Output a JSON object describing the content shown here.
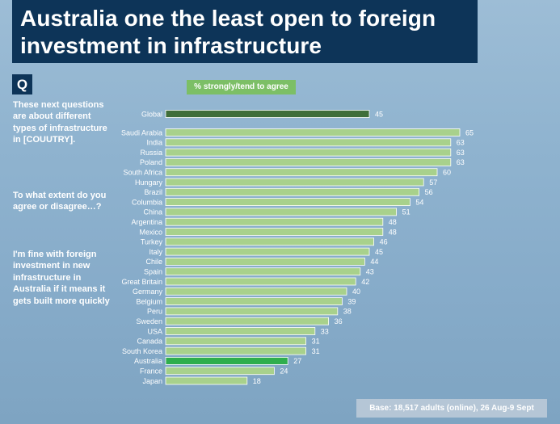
{
  "title": "Australia one the least open to foreign investment in infrastructure",
  "question": {
    "badge": "Q",
    "intro": "These next questions are about different types of infrastructure in [COUUTRY].",
    "prompt": "To what extent do you agree or disagree…?",
    "statement": "I'm fine with foreign investment in new infrastructure in Australia if it means it gets built more quickly"
  },
  "legend_label": "% strongly/tend to agree",
  "footnote": "Base: 18,517 adults (online), 26 Aug-9 Sept",
  "colors": {
    "title_bg": "#0d3458",
    "bar_default": "#a8d18c",
    "bar_global": "#3f6e3a",
    "bar_highlight": "#2fae4d",
    "legend_bg": "#7cbf66"
  },
  "chart_data": {
    "type": "bar",
    "orientation": "horizontal",
    "series_name": "% strongly/tend to agree",
    "categories": [
      "Global",
      "Saudi Arabia",
      "India",
      "Russia",
      "Poland",
      "South Africa",
      "Hungary",
      "Brazil",
      "Columbia",
      "China",
      "Argentina",
      "Mexico",
      "Turkey",
      "Italy",
      "Chile",
      "Spain",
      "Great Britain",
      "Germany",
      "Belgium",
      "Peru",
      "Sweden",
      "USA",
      "Canada",
      "South Korea",
      "Australia",
      "France",
      "Japan"
    ],
    "values": [
      45,
      65,
      63,
      63,
      63,
      60,
      57,
      56,
      54,
      51,
      48,
      48,
      46,
      45,
      44,
      43,
      42,
      40,
      39,
      38,
      36,
      33,
      31,
      31,
      27,
      24,
      18
    ],
    "highlight": {
      "Global": "bar_global",
      "Australia": "bar_highlight"
    },
    "grid": false,
    "legend": "top"
  }
}
